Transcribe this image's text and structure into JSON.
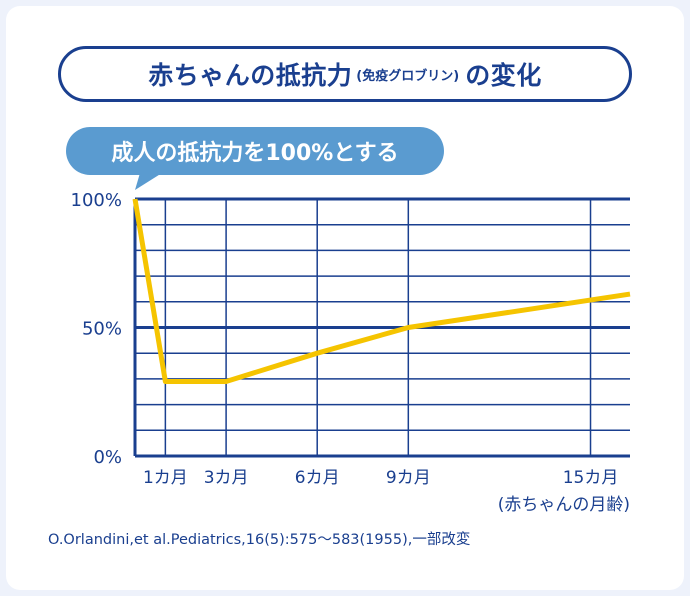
{
  "title": {
    "main": "赤ちゃんの抵抗力",
    "paren": "(免疫グロブリン)",
    "suffix": "の変化"
  },
  "callout": "成人の抵抗力を100%とする",
  "source_note": "O.Orlandini,et al.Pediatrics,16(5):575〜583(1955),一部改変",
  "colors": {
    "primary": "#1a3f8f",
    "line": "#f5c400",
    "callout_bg": "#5a9bd0",
    "grid": "#1a3f8f"
  },
  "chart_data": {
    "type": "line",
    "title": "赤ちゃんの抵抗力(免疫グロブリン)の変化",
    "xlabel": "(赤ちゃんの月齢)",
    "ylabel": "",
    "x_ticks": [
      {
        "value": 1,
        "label": "1カ月"
      },
      {
        "value": 3,
        "label": "3カ月"
      },
      {
        "value": 6,
        "label": "6カ月"
      },
      {
        "value": 9,
        "label": "9カ月"
      },
      {
        "value": 15,
        "label": "15カ月"
      }
    ],
    "y_ticks": [
      {
        "value": 0,
        "label": "0%"
      },
      {
        "value": 50,
        "label": "50%"
      },
      {
        "value": 100,
        "label": "100%"
      }
    ],
    "xlim": [
      0,
      16.3
    ],
    "ylim": [
      0,
      100
    ],
    "series": [
      {
        "x": [
          0,
          1,
          3,
          6,
          9,
          16.3
        ],
        "y": [
          100,
          29,
          29,
          40,
          50,
          63
        ]
      }
    ],
    "grid": true,
    "legend": "none"
  }
}
